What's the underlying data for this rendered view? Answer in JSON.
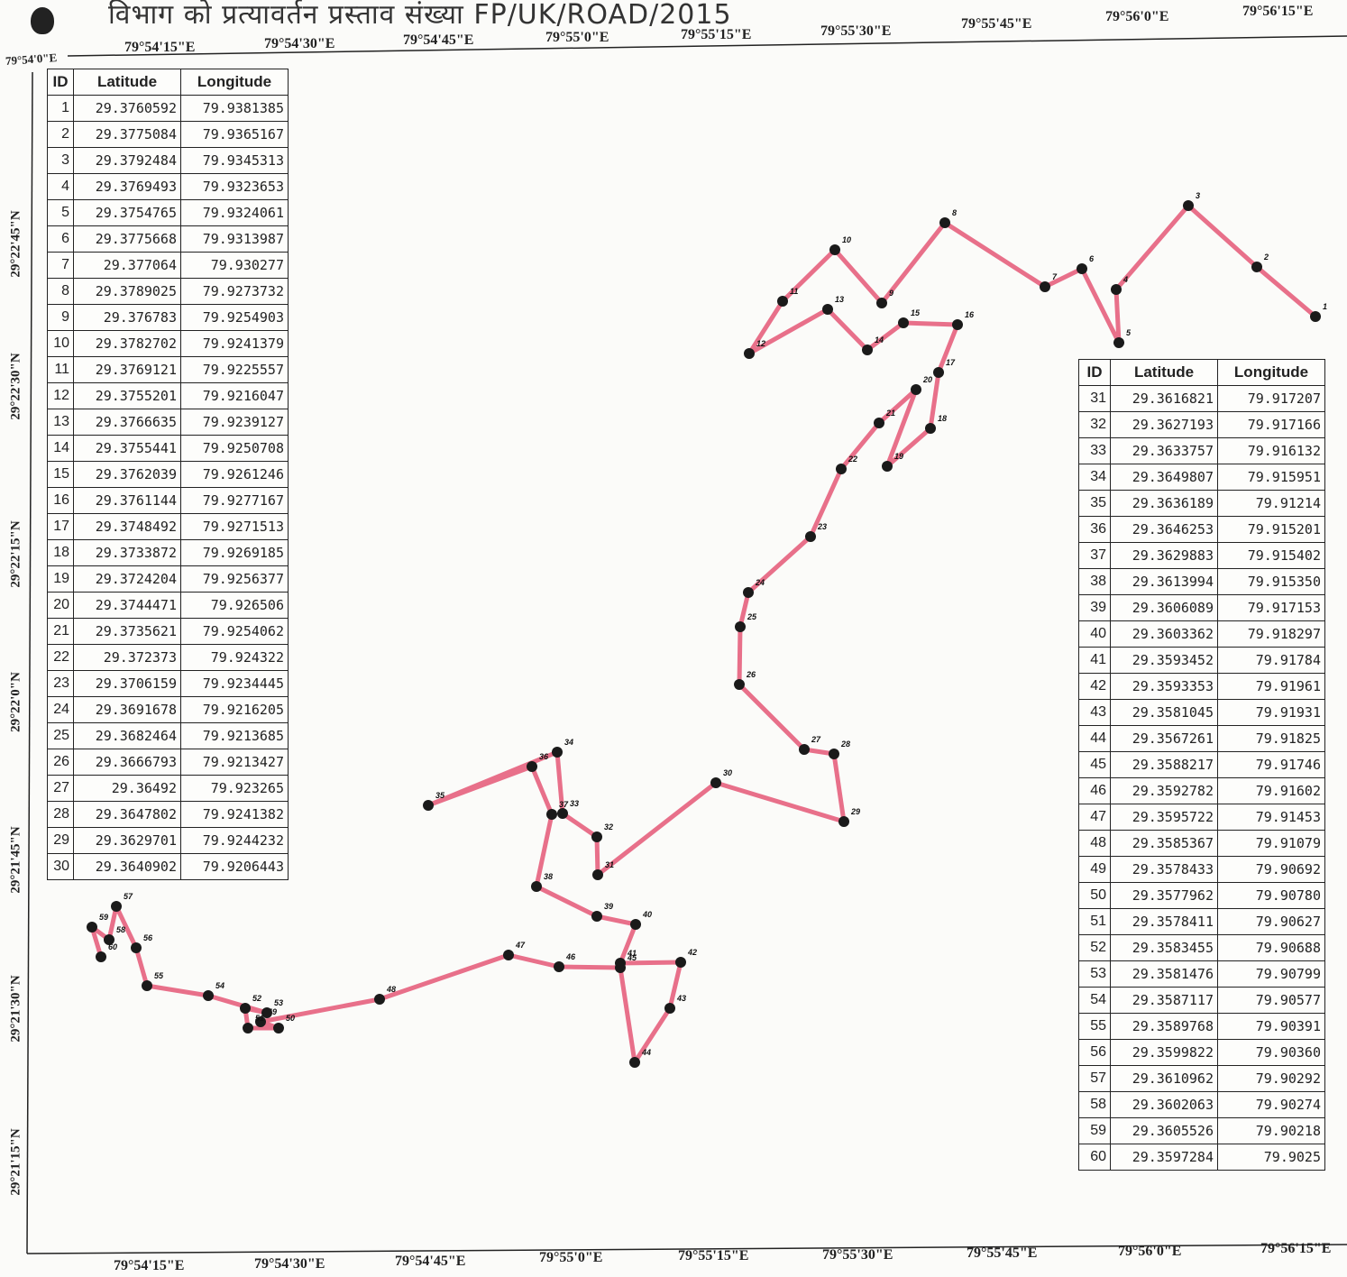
{
  "header_text": "विभाग को प्रत्यावर्तन प्रस्ताव संख्या FP/UK/ROAD/2015",
  "top_lon_labels": [
    "79°54'0\"E",
    "79°54'15\"E",
    "79°54'30\"E",
    "79°54'45\"E",
    "79°55'0\"E",
    "79°55'15\"E",
    "79°55'30\"E",
    "79°55'45\"E",
    "79°56'0\"E",
    "79°56'15\"E"
  ],
  "bottom_lon_labels": [
    "79°54'15\"E",
    "79°54'30\"E",
    "79°54'45\"E",
    "79°55'0\"E",
    "79°55'15\"E",
    "79°55'30\"E",
    "79°55'45\"E",
    "79°56'0\"E",
    "79°56'15\"E"
  ],
  "lat_labels": [
    "29°22'45\"N",
    "29°22'30\"N",
    "29°22'15\"N",
    "29°22'0\"N",
    "29°21'45\"N",
    "29°21'30\"N",
    "29°21'15\"N"
  ],
  "table_headers": {
    "id": "ID",
    "lat": "Latitude",
    "lon": "Longitude"
  },
  "table1": [
    [
      "1",
      "29.3760592",
      "79.9381385"
    ],
    [
      "2",
      "29.3775084",
      "79.9365167"
    ],
    [
      "3",
      "29.3792484",
      "79.9345313"
    ],
    [
      "4",
      "29.3769493",
      "79.9323653"
    ],
    [
      "5",
      "29.3754765",
      "79.9324061"
    ],
    [
      "6",
      "29.3775668",
      "79.9313987"
    ],
    [
      "7",
      "29.377064",
      "79.930277"
    ],
    [
      "8",
      "29.3789025",
      "79.9273732"
    ],
    [
      "9",
      "29.376783",
      "79.9254903"
    ],
    [
      "10",
      "29.3782702",
      "79.9241379"
    ],
    [
      "11",
      "29.3769121",
      "79.9225557"
    ],
    [
      "12",
      "29.3755201",
      "79.9216047"
    ],
    [
      "13",
      "29.3766635",
      "79.9239127"
    ],
    [
      "14",
      "29.3755441",
      "79.9250708"
    ],
    [
      "15",
      "29.3762039",
      "79.9261246"
    ],
    [
      "16",
      "29.3761144",
      "79.9277167"
    ],
    [
      "17",
      "29.3748492",
      "79.9271513"
    ],
    [
      "18",
      "29.3733872",
      "79.9269185"
    ],
    [
      "19",
      "29.3724204",
      "79.9256377"
    ],
    [
      "20",
      "29.3744471",
      "79.926506"
    ],
    [
      "21",
      "29.3735621",
      "79.9254062"
    ],
    [
      "22",
      "29.372373",
      "79.924322"
    ],
    [
      "23",
      "29.3706159",
      "79.9234445"
    ],
    [
      "24",
      "29.3691678",
      "79.9216205"
    ],
    [
      "25",
      "29.3682464",
      "79.9213685"
    ],
    [
      "26",
      "29.3666793",
      "79.9213427"
    ],
    [
      "27",
      "29.36492",
      "79.923265"
    ],
    [
      "28",
      "29.3647802",
      "79.9241382"
    ],
    [
      "29",
      "29.3629701",
      "79.9244232"
    ],
    [
      "30",
      "29.3640902",
      "79.9206443"
    ]
  ],
  "table2": [
    [
      "31",
      "29.3616821",
      "79.917207"
    ],
    [
      "32",
      "29.3627193",
      "79.917166"
    ],
    [
      "33",
      "29.3633757",
      "79.916132"
    ],
    [
      "34",
      "29.3649807",
      "79.915951"
    ],
    [
      "35",
      "29.3636189",
      "79.91214"
    ],
    [
      "36",
      "29.3646253",
      "79.915201"
    ],
    [
      "37",
      "29.3629883",
      "79.915402"
    ],
    [
      "38",
      "29.3613994",
      "79.915350"
    ],
    [
      "39",
      "29.3606089",
      "79.917153"
    ],
    [
      "40",
      "29.3603362",
      "79.918297"
    ],
    [
      "41",
      "29.3593452",
      "79.91784"
    ],
    [
      "42",
      "29.3593353",
      "79.91961"
    ],
    [
      "43",
      "29.3581045",
      "79.91931"
    ],
    [
      "44",
      "29.3567261",
      "79.91825"
    ],
    [
      "45",
      "29.3588217",
      "79.91746"
    ],
    [
      "46",
      "29.3592782",
      "79.91602"
    ],
    [
      "47",
      "29.3595722",
      "79.91453"
    ],
    [
      "48",
      "29.3585367",
      "79.91079"
    ],
    [
      "49",
      "29.3578433",
      "79.90692"
    ],
    [
      "50",
      "29.3577962",
      "79.90780"
    ],
    [
      "51",
      "29.3578411",
      "79.90627"
    ],
    [
      "52",
      "29.3583455",
      "79.90688"
    ],
    [
      "53",
      "29.3581476",
      "79.90799"
    ],
    [
      "54",
      "29.3587117",
      "79.90577"
    ],
    [
      "55",
      "29.3589768",
      "79.90391"
    ],
    [
      "56",
      "29.3599822",
      "79.90360"
    ],
    [
      "57",
      "29.3610962",
      "79.90292"
    ],
    [
      "58",
      "29.3602063",
      "79.90274"
    ],
    [
      "59",
      "29.3605526",
      "79.90218"
    ],
    [
      "60",
      "29.3597284",
      "79.9025"
    ]
  ],
  "route_points": [
    [
      "1",
      1459,
      351
    ],
    [
      "2",
      1394,
      296
    ],
    [
      "3",
      1318,
      228
    ],
    [
      "4",
      1238,
      321
    ],
    [
      "5",
      1241,
      380
    ],
    [
      "6",
      1200,
      298
    ],
    [
      "7",
      1159,
      318
    ],
    [
      "8",
      1048,
      247
    ],
    [
      "9",
      978,
      336
    ],
    [
      "10",
      926,
      277
    ],
    [
      "11",
      868,
      334
    ],
    [
      "12",
      831,
      392
    ],
    [
      "13",
      918,
      343
    ],
    [
      "14",
      962,
      388
    ],
    [
      "15",
      1002,
      358
    ],
    [
      "16",
      1062,
      360
    ],
    [
      "17",
      1041,
      413
    ],
    [
      "18",
      1032,
      475
    ],
    [
      "19",
      984,
      517
    ],
    [
      "20",
      1016,
      432
    ],
    [
      "21",
      975,
      469
    ],
    [
      "22",
      933,
      520
    ],
    [
      "23",
      899,
      595
    ],
    [
      "24",
      830,
      657
    ],
    [
      "25",
      821,
      695
    ],
    [
      "26",
      820,
      759
    ],
    [
      "27",
      892,
      831
    ],
    [
      "28",
      925,
      836
    ],
    [
      "29",
      936,
      911
    ],
    [
      "30",
      794,
      868
    ],
    [
      "31",
      663,
      970
    ],
    [
      "32",
      662,
      928
    ],
    [
      "33",
      624,
      902
    ],
    [
      "34",
      618,
      834
    ],
    [
      "35",
      475,
      893
    ],
    [
      "36",
      590,
      850
    ],
    [
      "37",
      612,
      903
    ],
    [
      "38",
      595,
      983
    ],
    [
      "39",
      662,
      1016
    ],
    [
      "40",
      705,
      1025
    ],
    [
      "41",
      688,
      1068
    ],
    [
      "42",
      755,
      1067
    ],
    [
      "43",
      743,
      1118
    ],
    [
      "44",
      704,
      1178
    ],
    [
      "45",
      688,
      1073
    ],
    [
      "46",
      620,
      1072
    ],
    [
      "47",
      564,
      1059
    ],
    [
      "48",
      421,
      1108
    ],
    [
      "49",
      289,
      1133
    ],
    [
      "50",
      309,
      1140
    ],
    [
      "51",
      275,
      1140
    ],
    [
      "52",
      272,
      1118
    ],
    [
      "53",
      296,
      1123
    ],
    [
      "54",
      231,
      1104
    ],
    [
      "55",
      163,
      1093
    ],
    [
      "56",
      151,
      1051
    ],
    [
      "57",
      129,
      1005
    ],
    [
      "58",
      121,
      1042
    ],
    [
      "59",
      102,
      1028
    ],
    [
      "60",
      112,
      1061
    ]
  ],
  "colors": {
    "route": "#e8708a",
    "marker": "#1a1a1a"
  }
}
